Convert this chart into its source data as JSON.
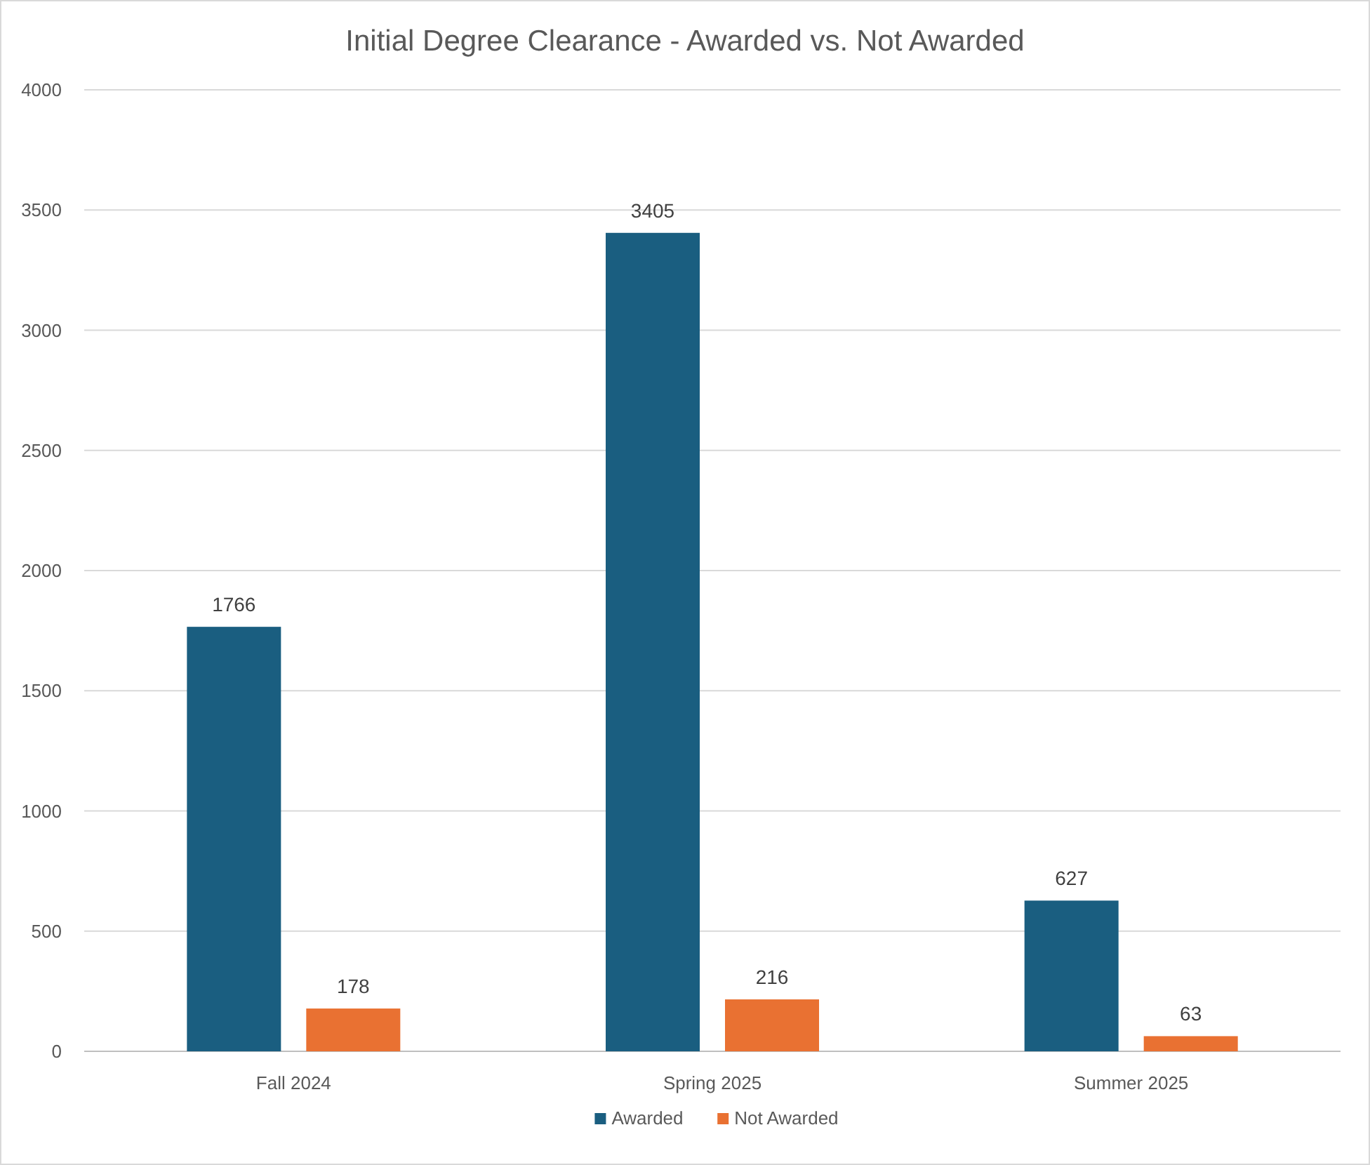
{
  "chart_data": {
    "type": "bar",
    "title": "Initial Degree Clearance - Awarded vs. Not Awarded",
    "categories": [
      "Fall 2024",
      "Spring 2025",
      "Summer 2025"
    ],
    "series": [
      {
        "name": "Awarded",
        "color": "#1a5e80",
        "values": [
          1766,
          3405,
          627
        ]
      },
      {
        "name": "Not Awarded",
        "color": "#e97132",
        "values": [
          178,
          216,
          63
        ]
      }
    ],
    "ylim": [
      0,
      4000
    ],
    "yticks": [
      0,
      500,
      1000,
      1500,
      2000,
      2500,
      3000,
      3500,
      4000
    ],
    "grid": "y",
    "legend": "bottom",
    "data_labels": true
  }
}
